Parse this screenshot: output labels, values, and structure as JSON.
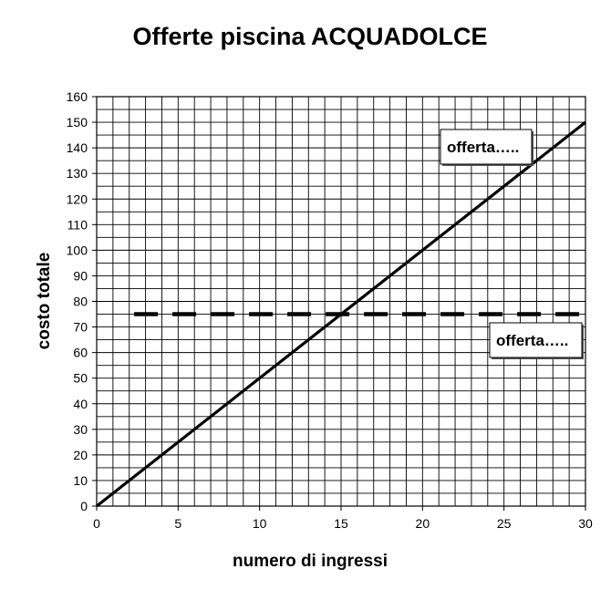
{
  "chart_data": {
    "type": "line",
    "title": "Offerte piscina ACQUADOLCE",
    "xlabel": "numero di ingressi",
    "ylabel": "costo totale",
    "xlim": [
      0,
      30
    ],
    "ylim": [
      0,
      160
    ],
    "x_ticks": [
      0,
      5,
      10,
      15,
      20,
      25,
      30
    ],
    "y_ticks": [
      0,
      10,
      20,
      30,
      40,
      50,
      60,
      70,
      80,
      90,
      100,
      110,
      120,
      130,
      140,
      150,
      160
    ],
    "grid": true,
    "grid_minor_x_step": 1,
    "grid_minor_y_step": 5,
    "series": [
      {
        "label": "offerta…..",
        "style": "solid",
        "color": "#000000",
        "x": [
          0,
          30
        ],
        "y": [
          0,
          150
        ]
      },
      {
        "label": "offerta…..",
        "style": "dashed",
        "color": "#000000",
        "x": [
          2.3,
          30
        ],
        "y": [
          75,
          75
        ]
      }
    ]
  }
}
